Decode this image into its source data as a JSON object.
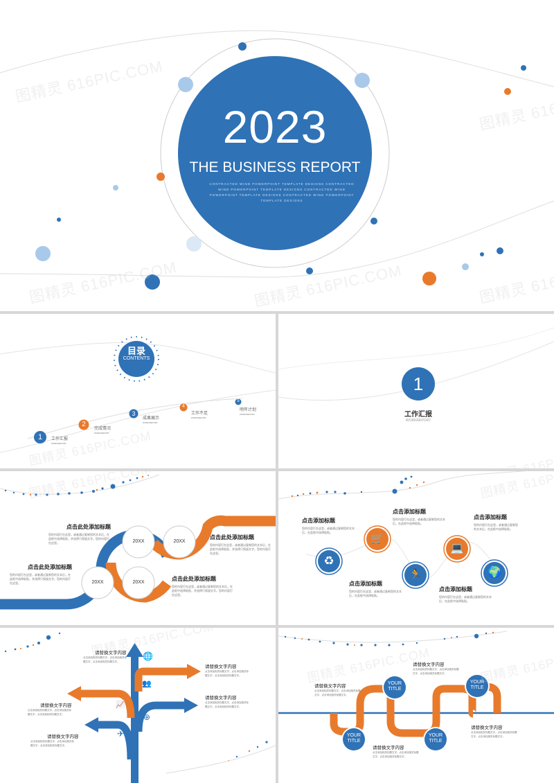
{
  "watermark": "图精灵 616PIC.COM",
  "colors": {
    "blue": "#2f72b6",
    "orange": "#e87a2c",
    "light_blue": "#a9c9eb"
  },
  "cover": {
    "year": "2023",
    "title": "THE BUSINESS REPORT",
    "tagline": "CONTRACTED WIND POWERPOINT TEMPLATE DESIGNS CONTRACTED WIND POWERPOINT TEMPLATE DESIGNS CONTRACTED WIND POWERPOINT TEMPLATE DESIGNS CONTRACTED WIND POWERPOINT TEMPLATE DESIGNS"
  },
  "toc": {
    "title": "目录",
    "subtitle": "CONTENTS",
    "items": [
      {
        "num": "1",
        "label": "工作汇报",
        "sub": "WORKREPORT"
      },
      {
        "num": "2",
        "label": "完成情况",
        "sub": "WORKREPORT"
      },
      {
        "num": "3",
        "label": "成果展示",
        "sub": "WORKREPORT"
      },
      {
        "num": "4",
        "label": "工作不足",
        "sub": "WORKREPORT"
      },
      {
        "num": "5",
        "label": "明年计划",
        "sub": "WORKREPORT"
      }
    ]
  },
  "section": {
    "num": "1",
    "title": "工作汇报",
    "sub": "WORKREPORT"
  },
  "s4": {
    "items": [
      {
        "title": "点击此处添加标题",
        "body": "您的内容打在这里，或者通过复制您的文本后，在此框中选择粘贴，并选择只保留文字。您的内容打在这里。"
      },
      {
        "title": "点击此处添加标题",
        "body": "您的内容打在这里，或者通过复制您的文本后，在此框中选择粘贴，并选择只保留文字。您的内容打在这里。"
      },
      {
        "title": "点击此处添加标题",
        "body": "您的内容打在这里，或者通过复制您的文本后，在此框中选择粘贴，并选择只保留文字。您的内容打在这里。"
      },
      {
        "title": "点击此处添加标题",
        "body": "您的内容打在这里，或者通过复制您的文本后，在此框中选择粘贴，并选择只保留文字。您的内容打在这里。"
      }
    ],
    "circles": [
      "20XX",
      "20XX",
      "20XX",
      "20XX"
    ]
  },
  "s5": {
    "items": [
      {
        "title": "点击添加标题",
        "body": "您的内容打在这里，或者通过复制您的文本后，在此框中选择粘贴。"
      },
      {
        "title": "点击添加标题",
        "body": "您的内容打在这里，或者通过复制您的文本后，在此框中选择粘贴。"
      },
      {
        "title": "点击添加标题",
        "body": "您的内容打在这里，或者通过复制您的文本后，在此框中选择粘贴。"
      },
      {
        "title": "点击添加标题",
        "body": "您的内容打在这里，或者通过复制您的文本后，在此框中选择粘贴。"
      },
      {
        "title": "点击添加标题",
        "body": "您的内容打在这里，或者通过复制您的文本后，在此框中选择粘贴。"
      }
    ]
  },
  "s6": {
    "items": [
      {
        "title": "请替换文字内容",
        "body": "点击添加相关标题文字，点击添加相关标题文字，点击添加相关标题文字。"
      },
      {
        "title": "请替换文字内容",
        "body": "点击添加相关标题文字，点击添加相关标题文字，点击添加相关标题文字。"
      },
      {
        "title": "请替换文字内容",
        "body": "点击添加相关标题文字，点击添加相关标题文字，点击添加相关标题文字。"
      },
      {
        "title": "请替换文字内容",
        "body": "点击添加相关标题文字，点击添加相关标题文字，点击添加相关标题文字。"
      },
      {
        "title": "请替换文字内容",
        "body": "点击添加相关标题文字，点击添加相关标题文字，点击添加相关标题文字。"
      }
    ]
  },
  "s7": {
    "circle_label_1": "YOUR",
    "circle_label_2": "TITLE",
    "items": [
      {
        "title": "请替换文字内容",
        "body": "点击添加相关标题文字，点击添加相关标题文字，点击添加相关标题文字。"
      },
      {
        "title": "请替换文字内容",
        "body": "点击添加相关标题文字，点击添加相关标题文字，点击添加相关标题文字。"
      },
      {
        "title": "请替换文字内容",
        "body": "点击添加相关标题文字，点击添加相关标题文字，点击添加相关标题文字。"
      },
      {
        "title": "请替换文字内容",
        "body": "点击添加相关标题文字，点击添加相关标题文字，点击添加相关标题文字。"
      }
    ]
  }
}
